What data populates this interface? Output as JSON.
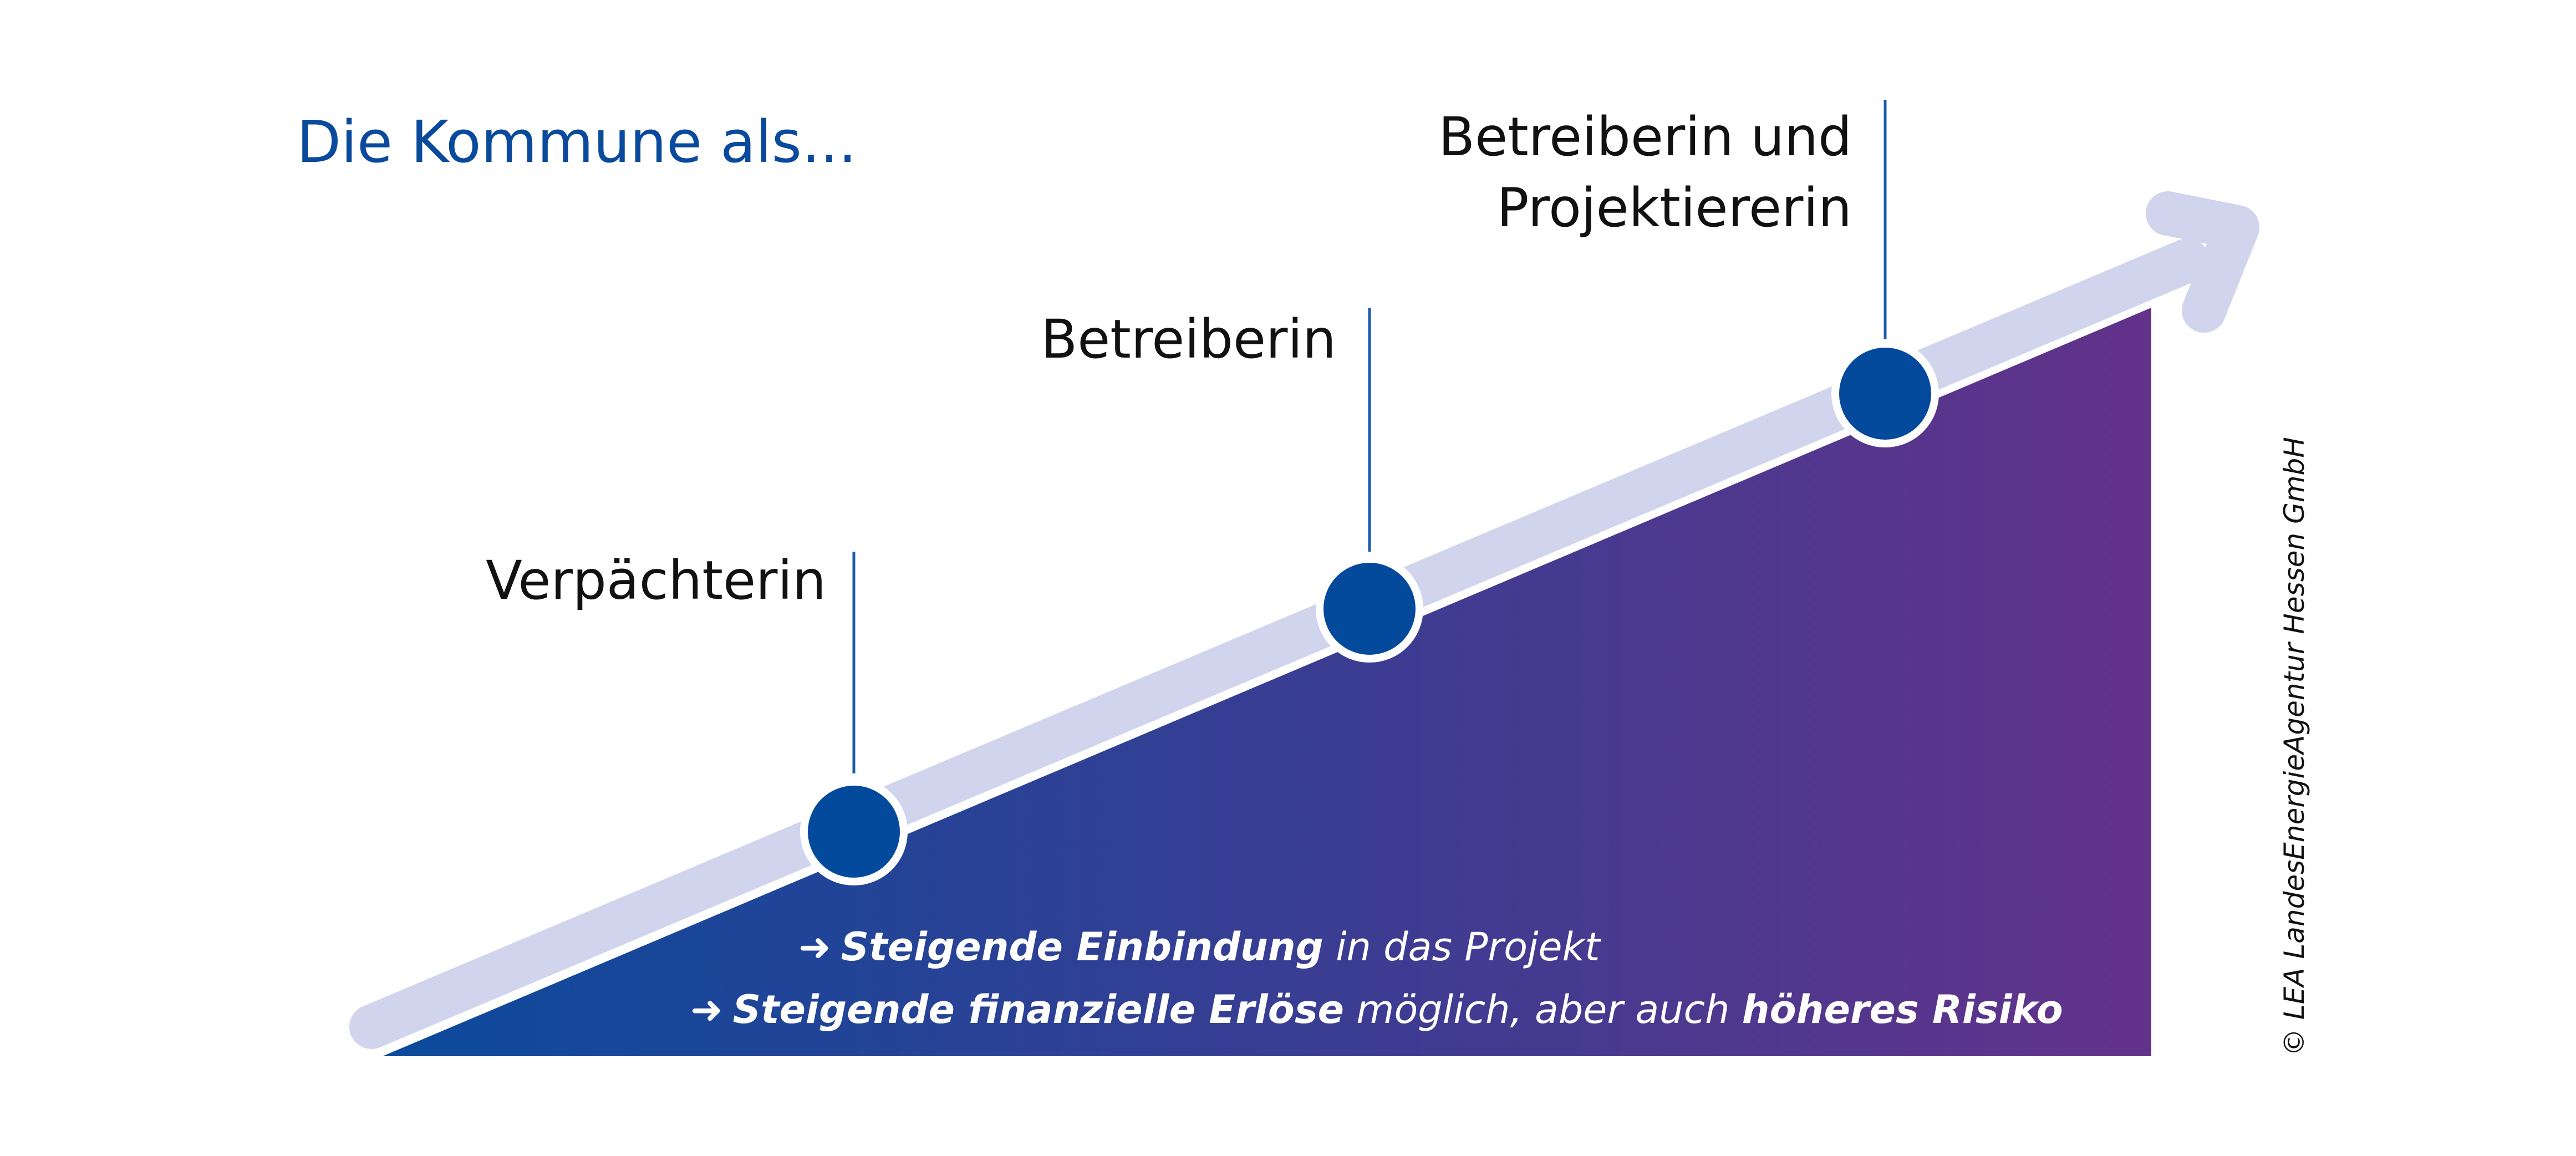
{
  "heading": "Die Kommune als...",
  "stages": [
    {
      "label": "Verpächterin"
    },
    {
      "label": "Betreiberin"
    },
    {
      "label_line1": "Betreiberin und",
      "label_line2": "Projektiererin"
    }
  ],
  "bullets": [
    {
      "arrow": "➜",
      "bold": "Steigende Einbindung",
      "rest": " in das Projekt"
    },
    {
      "arrow": "➜",
      "bold": "Steigende finanzielle Erlöse",
      "rest": " möglich, aber auch ",
      "bold2": "höheres Risiko"
    }
  ],
  "copyright": "© LEA LandesEnergieAgentur Hessen GmbH",
  "colors": {
    "heading": "#0a4a9c",
    "gradient_start": "#0b4a9c",
    "gradient_end": "#63328a",
    "arrow_band": "#d0d4ec",
    "dot_fill": "#034a9c",
    "line": "#1b5bab"
  }
}
